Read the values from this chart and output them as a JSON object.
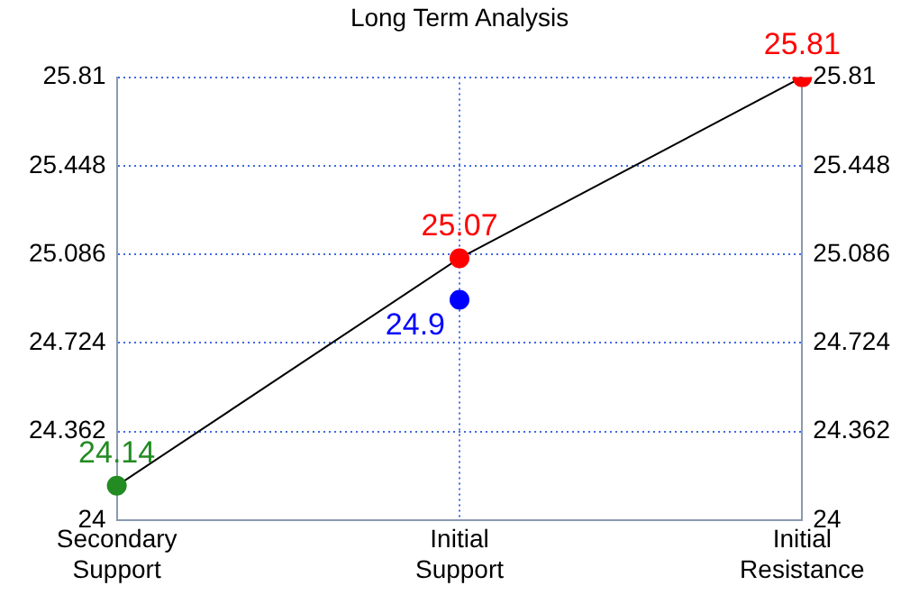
{
  "chart_data": {
    "type": "line",
    "title": "Long Term Analysis",
    "categories": [
      "Secondary Support",
      "Initial Support",
      "Initial Resistance"
    ],
    "series": [
      {
        "color": "#000000",
        "colors": [
          "#228b22",
          "#ff0000",
          "#ff0000"
        ],
        "values": [
          24.14,
          25.07,
          25.81
        ],
        "value_labels": [
          "24.14",
          "25.07",
          "25.81"
        ]
      },
      {
        "type": "scatter",
        "color": "#0000ff",
        "x": [
          "Initial Support"
        ],
        "values": [
          24.9
        ],
        "value_labels": [
          "24.9"
        ]
      }
    ],
    "ylim": [
      24,
      25.81
    ],
    "yticks": [
      24,
      24.362,
      24.724,
      25.086,
      25.448,
      25.81
    ],
    "y2lim": [
      24,
      25.81
    ],
    "y2ticks": [
      24,
      24.362,
      24.724,
      25.086,
      25.448,
      25.81
    ],
    "grid": true,
    "marker": "circle",
    "line_style": "solid",
    "legend": false
  }
}
